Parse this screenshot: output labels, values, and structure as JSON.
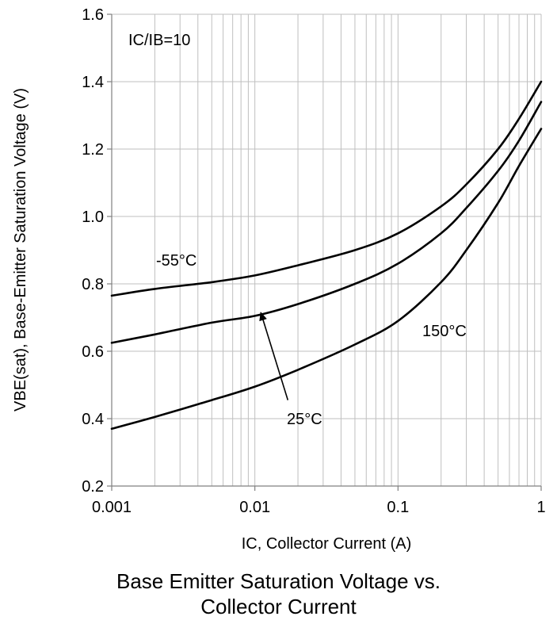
{
  "chart_data": {
    "type": "line",
    "title": "Base Emitter Saturation Voltage vs. Collector Current",
    "title_lines": [
      "Base Emitter Saturation Voltage vs.",
      "Collector Current"
    ],
    "xlabel": "IC, Collector Current (A)",
    "ylabel": "VBE(sat), Base-Emitter Saturation Voltage (V)",
    "x_scale": "log",
    "xlim": [
      0.001,
      1
    ],
    "ylim": [
      0.2,
      1.6
    ],
    "grid": true,
    "x_ticks": [
      0.001,
      0.01,
      0.1,
      1
    ],
    "x_tick_labels": [
      "0.001",
      "0.01",
      "0.1",
      "1"
    ],
    "y_ticks": [
      0.2,
      0.4,
      0.6,
      0.8,
      1.0,
      1.2,
      1.4,
      1.6
    ],
    "y_tick_labels": [
      "0.2",
      "0.4",
      "0.6",
      "0.8",
      "1.0",
      "1.2",
      "1.4",
      "1.6"
    ],
    "annotations": {
      "condition": "IC/IB=10",
      "series_label_m55": "-55°C",
      "series_label_25": "25°C",
      "series_label_150": "150°C"
    },
    "series": [
      {
        "name": "-55°C",
        "x": [
          0.001,
          0.002,
          0.005,
          0.01,
          0.02,
          0.05,
          0.1,
          0.2,
          0.3,
          0.5,
          0.7,
          1.0
        ],
        "y": [
          0.765,
          0.785,
          0.805,
          0.825,
          0.855,
          0.9,
          0.95,
          1.03,
          1.095,
          1.2,
          1.29,
          1.4
        ]
      },
      {
        "name": "25°C",
        "x": [
          0.001,
          0.002,
          0.005,
          0.01,
          0.02,
          0.05,
          0.1,
          0.2,
          0.3,
          0.5,
          0.7,
          1.0
        ],
        "y": [
          0.625,
          0.65,
          0.685,
          0.705,
          0.74,
          0.8,
          0.86,
          0.95,
          1.025,
          1.135,
          1.225,
          1.34
        ]
      },
      {
        "name": "150°C",
        "x": [
          0.001,
          0.002,
          0.005,
          0.01,
          0.02,
          0.05,
          0.1,
          0.2,
          0.3,
          0.5,
          0.7,
          1.0
        ],
        "y": [
          0.37,
          0.405,
          0.455,
          0.495,
          0.545,
          0.62,
          0.69,
          0.805,
          0.9,
          1.04,
          1.15,
          1.26
        ]
      }
    ],
    "arrow": {
      "from": [
        0.017,
        0.455
      ],
      "to": [
        0.011,
        0.715
      ]
    },
    "colors": {
      "line": "#000000",
      "grid": "#bfbfbf",
      "axis": "#808080"
    }
  }
}
